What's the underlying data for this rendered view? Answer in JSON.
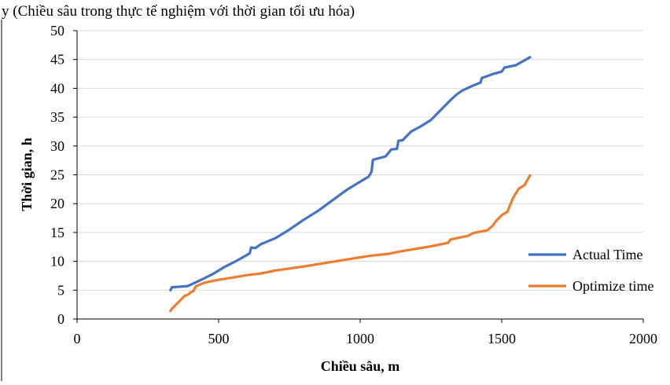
{
  "caption": "y (Chiều sâu trong thực tế nghiệm với thời gian tối ưu hóa)",
  "chart_data": {
    "type": "line",
    "xlabel": "Chiều sâu, m",
    "ylabel": "Thời gian, h",
    "xlim": [
      0,
      2000
    ],
    "ylim": [
      0,
      50
    ],
    "xticks": [
      "0",
      "500",
      "1000",
      "1500",
      "2000"
    ],
    "yticks": [
      "0",
      "5",
      "10",
      "15",
      "20",
      "25",
      "30",
      "35",
      "40",
      "45",
      "50"
    ],
    "grid": "horizontal",
    "legend_position": "bottom-right",
    "series": [
      {
        "name": "Actual Time",
        "color": "#4472C4",
        "points": [
          [
            330,
            5.0
          ],
          [
            335,
            5.5
          ],
          [
            390,
            5.7
          ],
          [
            430,
            6.6
          ],
          [
            480,
            7.8
          ],
          [
            520,
            9.0
          ],
          [
            560,
            10.0
          ],
          [
            600,
            11.1
          ],
          [
            610,
            11.4
          ],
          [
            615,
            12.4
          ],
          [
            630,
            12.3
          ],
          [
            650,
            13.0
          ],
          [
            700,
            14.0
          ],
          [
            750,
            15.5
          ],
          [
            800,
            17.2
          ],
          [
            850,
            18.7
          ],
          [
            900,
            20.5
          ],
          [
            950,
            22.3
          ],
          [
            1000,
            23.8
          ],
          [
            1030,
            24.7
          ],
          [
            1040,
            25.5
          ],
          [
            1045,
            27.6
          ],
          [
            1060,
            27.8
          ],
          [
            1090,
            28.2
          ],
          [
            1110,
            29.4
          ],
          [
            1130,
            29.5
          ],
          [
            1135,
            30.9
          ],
          [
            1150,
            31.0
          ],
          [
            1180,
            32.5
          ],
          [
            1210,
            33.3
          ],
          [
            1250,
            34.5
          ],
          [
            1270,
            35.5
          ],
          [
            1300,
            37.0
          ],
          [
            1320,
            38.0
          ],
          [
            1340,
            38.9
          ],
          [
            1360,
            39.6
          ],
          [
            1400,
            40.5
          ],
          [
            1425,
            41.0
          ],
          [
            1430,
            41.8
          ],
          [
            1470,
            42.5
          ],
          [
            1500,
            42.9
          ],
          [
            1510,
            43.6
          ],
          [
            1550,
            44.0
          ],
          [
            1600,
            45.4
          ]
        ]
      },
      {
        "name": "Optimize time",
        "color": "#ED7D31",
        "points": [
          [
            330,
            1.4
          ],
          [
            335,
            1.8
          ],
          [
            360,
            3.0
          ],
          [
            380,
            4.0
          ],
          [
            395,
            4.3
          ],
          [
            400,
            4.6
          ],
          [
            410,
            4.8
          ],
          [
            420,
            5.7
          ],
          [
            450,
            6.3
          ],
          [
            500,
            6.8
          ],
          [
            550,
            7.2
          ],
          [
            600,
            7.6
          ],
          [
            650,
            7.9
          ],
          [
            700,
            8.4
          ],
          [
            800,
            9.1
          ],
          [
            900,
            9.9
          ],
          [
            1000,
            10.7
          ],
          [
            1040,
            11.0
          ],
          [
            1100,
            11.3
          ],
          [
            1150,
            11.8
          ],
          [
            1200,
            12.2
          ],
          [
            1250,
            12.6
          ],
          [
            1310,
            13.2
          ],
          [
            1320,
            13.8
          ],
          [
            1380,
            14.4
          ],
          [
            1400,
            14.9
          ],
          [
            1450,
            15.4
          ],
          [
            1470,
            16.3
          ],
          [
            1480,
            17.0
          ],
          [
            1500,
            18.0
          ],
          [
            1520,
            18.6
          ],
          [
            1540,
            21.0
          ],
          [
            1560,
            22.6
          ],
          [
            1580,
            23.2
          ],
          [
            1600,
            24.9
          ]
        ]
      }
    ]
  }
}
